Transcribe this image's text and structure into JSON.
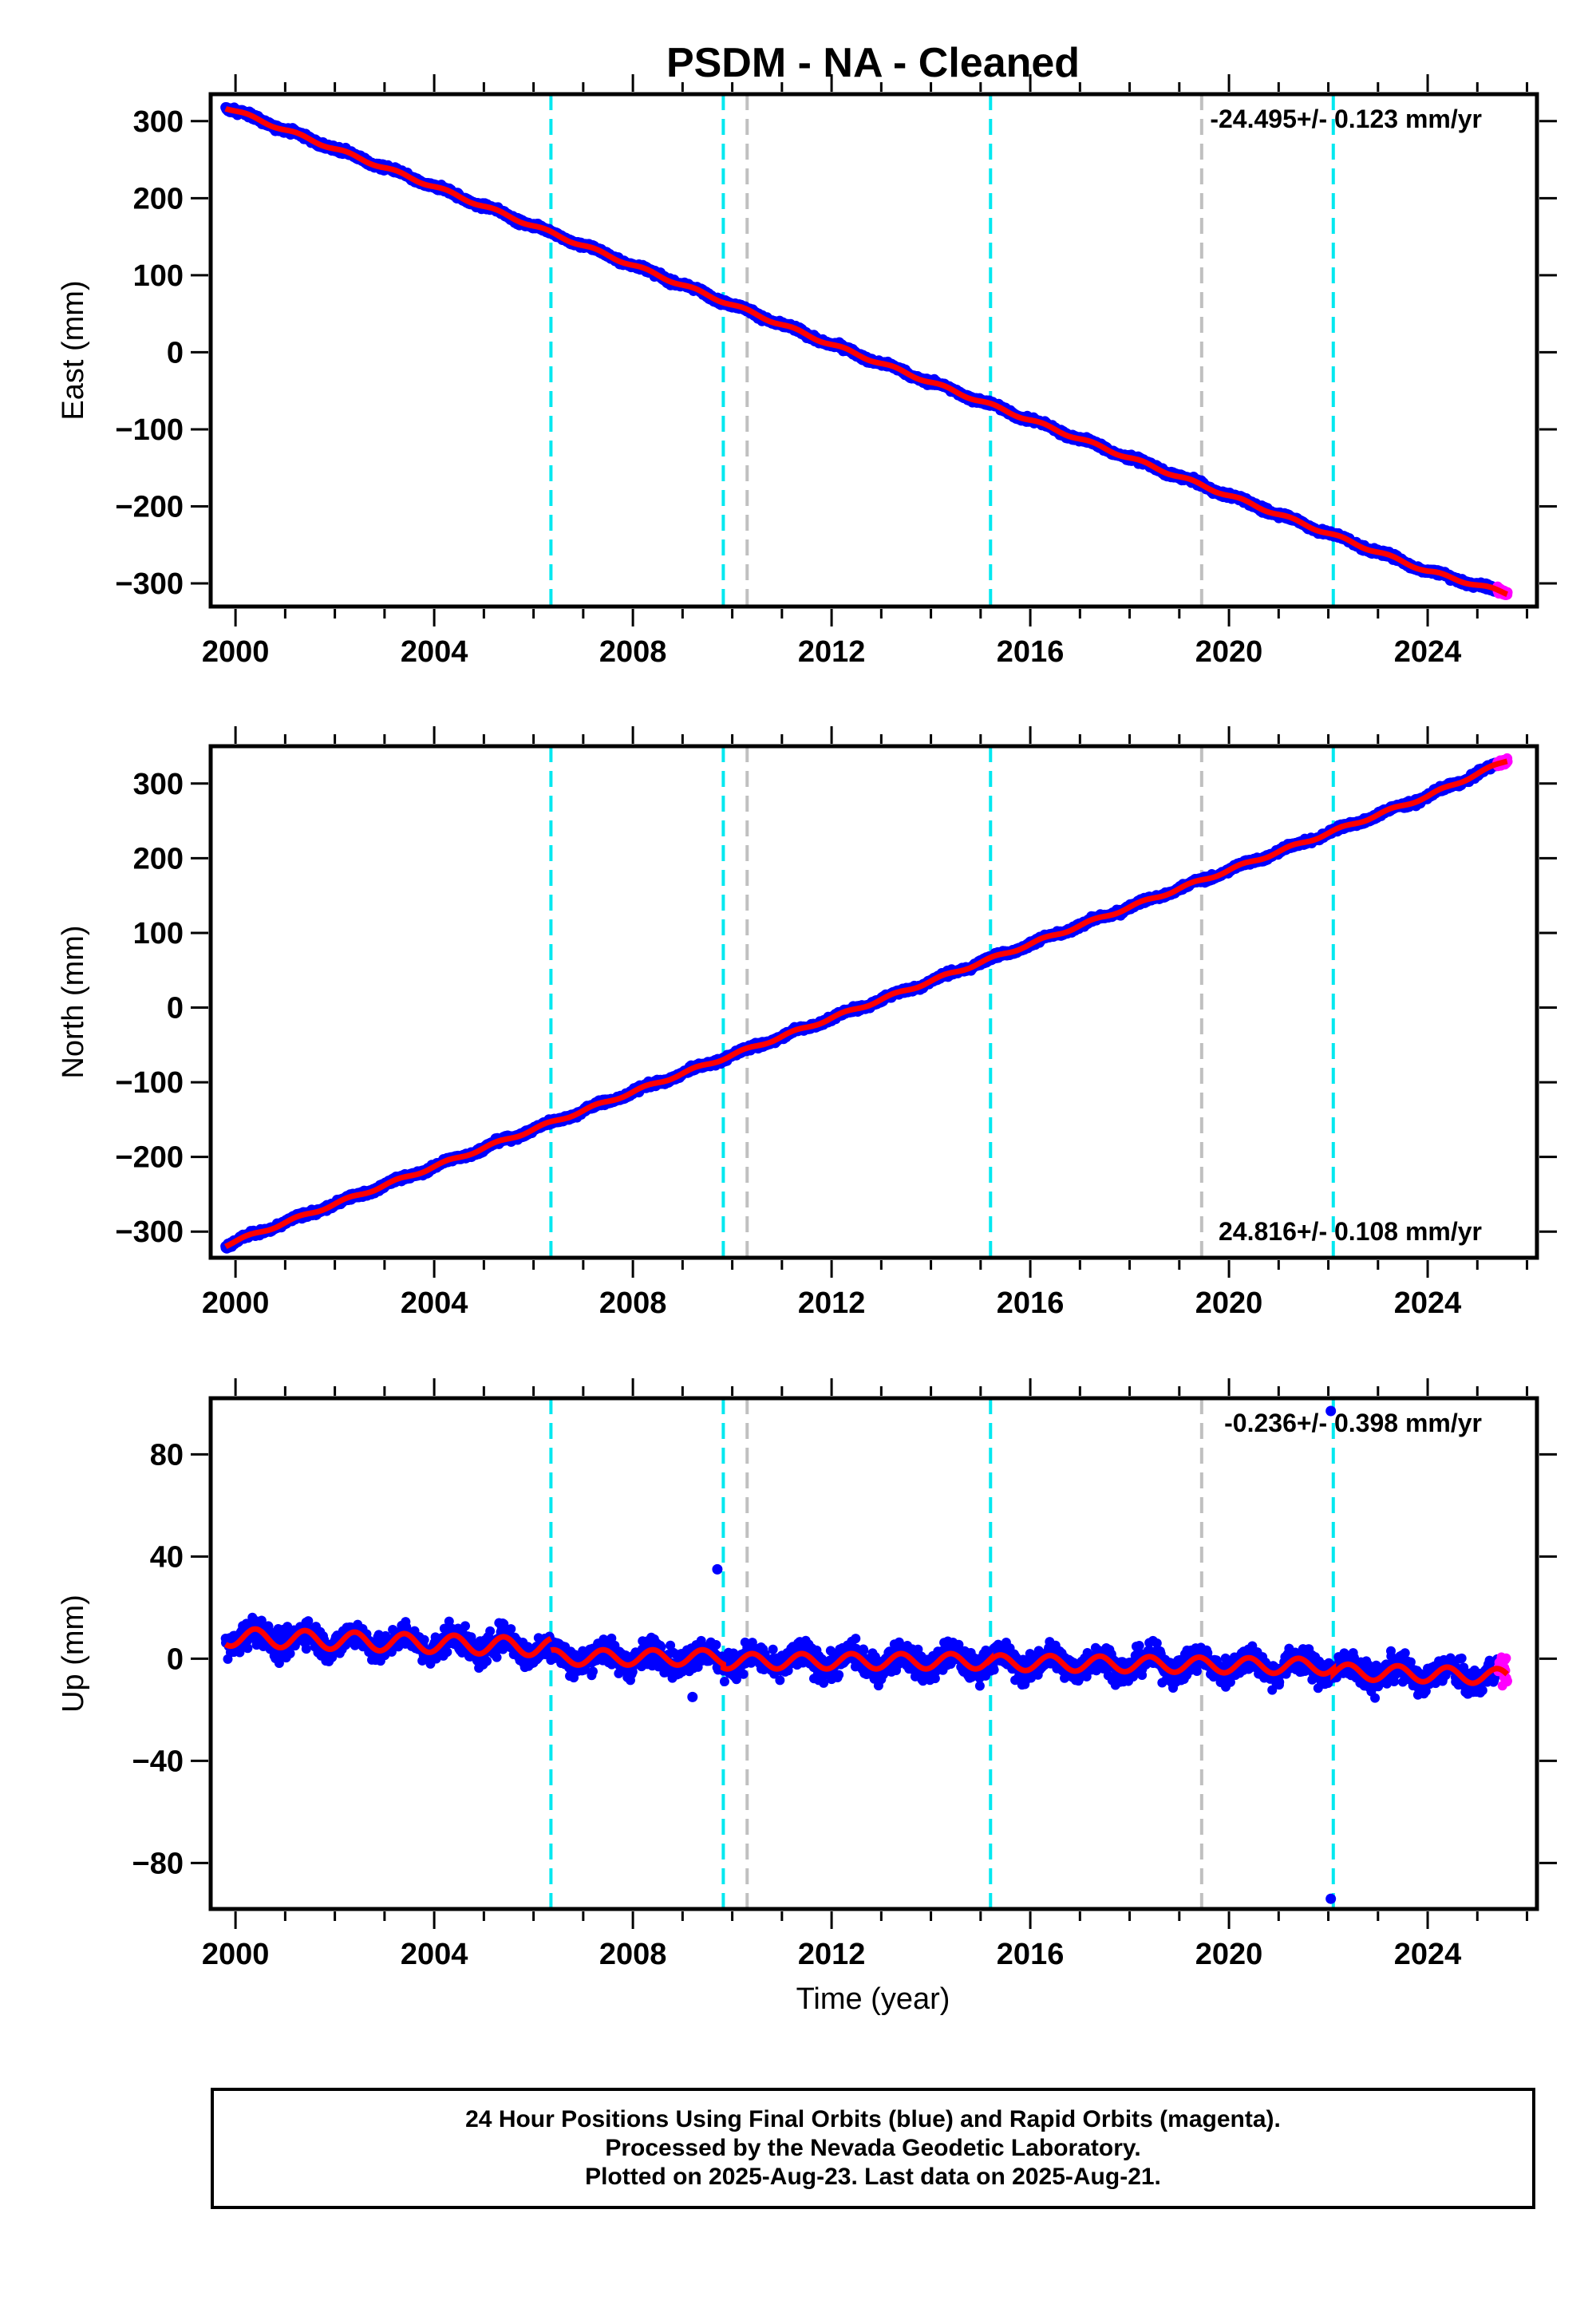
{
  "title": "PSDM  - NA - Cleaned",
  "xlabel": "Time (year)",
  "colors": {
    "final_orbits": "#0000ff",
    "rapid_orbits": "#ff00ff",
    "model": "#ff0000",
    "event_cyan": "#00e8f0",
    "event_gray": "#c0c0c0"
  },
  "chart_data": [
    {
      "type": "scatter",
      "panel": "East",
      "ylabel": "East (mm)",
      "xlim": [
        1999.5,
        2026.2
      ],
      "ylim": [
        -330,
        335
      ],
      "x_ticks": [
        2000,
        2004,
        2008,
        2012,
        2016,
        2020,
        2024
      ],
      "y_ticks": [
        -300,
        -200,
        -100,
        0,
        100,
        200,
        300
      ],
      "y_tick_labels": [
        "−300",
        "−200",
        "−100",
        "0",
        "100",
        "200",
        "300"
      ],
      "velocity_label": "-24.495+/- 0.123 mm/yr",
      "velocity_label_position": "top-right",
      "start": {
        "x": 1999.8,
        "y": 318
      },
      "end": {
        "x": 2025.6,
        "y": -313
      },
      "trend": [
        [
          1999.8,
          318
        ],
        [
          2004,
          215
        ],
        [
          2008,
          113
        ],
        [
          2012,
          10
        ],
        [
          2016,
          -88
        ],
        [
          2020,
          -186
        ],
        [
          2024,
          -284
        ],
        [
          2025.6,
          -313
        ]
      ],
      "scatter_noise_mm": 5,
      "seasonal_amplitude_mm": 2,
      "rapid_orbit_x_range": [
        2025.4,
        2025.65
      ],
      "event_lines": [
        {
          "x": 2006.35,
          "color": "cyan"
        },
        {
          "x": 2009.82,
          "color": "cyan"
        },
        {
          "x": 2010.3,
          "color": "gray"
        },
        {
          "x": 2015.2,
          "color": "cyan"
        },
        {
          "x": 2019.45,
          "color": "gray"
        },
        {
          "x": 2022.1,
          "color": "cyan"
        }
      ]
    },
    {
      "type": "scatter",
      "panel": "North",
      "ylabel": "North (mm)",
      "xlim": [
        1999.5,
        2026.2
      ],
      "ylim": [
        -335,
        350
      ],
      "x_ticks": [
        2000,
        2004,
        2008,
        2012,
        2016,
        2020,
        2024
      ],
      "y_ticks": [
        -300,
        -200,
        -100,
        0,
        100,
        200,
        300
      ],
      "y_tick_labels": [
        "−300",
        "−200",
        "−100",
        "0",
        "100",
        "200",
        "300"
      ],
      "velocity_label": "24.816+/- 0.108 mm/yr",
      "velocity_label_position": "bottom-right",
      "start": {
        "x": 1999.8,
        "y": -318
      },
      "end": {
        "x": 2025.6,
        "y": 331
      },
      "trend": [
        [
          1999.8,
          -318
        ],
        [
          2004,
          -213
        ],
        [
          2008,
          -113
        ],
        [
          2012,
          -14
        ],
        [
          2016,
          85
        ],
        [
          2020,
          184
        ],
        [
          2024,
          283
        ],
        [
          2025.6,
          331
        ]
      ],
      "scatter_noise_mm": 5,
      "seasonal_amplitude_mm": 2,
      "rapid_orbit_x_range": [
        2025.4,
        2025.65
      ],
      "event_lines": [
        {
          "x": 2006.35,
          "color": "cyan"
        },
        {
          "x": 2009.82,
          "color": "cyan"
        },
        {
          "x": 2010.3,
          "color": "gray"
        },
        {
          "x": 2015.2,
          "color": "cyan"
        },
        {
          "x": 2019.45,
          "color": "gray"
        },
        {
          "x": 2022.1,
          "color": "cyan"
        }
      ]
    },
    {
      "type": "scatter",
      "panel": "Up",
      "ylabel": "Up (mm)",
      "xlim": [
        1999.5,
        2026.2
      ],
      "ylim": [
        -98,
        102
      ],
      "x_ticks": [
        2000,
        2004,
        2008,
        2012,
        2016,
        2020,
        2024
      ],
      "y_ticks": [
        -80,
        -40,
        0,
        40,
        80
      ],
      "y_tick_labels": [
        "−80",
        "−40",
        "0",
        "40",
        "80"
      ],
      "velocity_label": "-0.236+/- 0.398 mm/yr",
      "velocity_label_position": "top-right",
      "model_segments": [
        {
          "x": [
            1999.8,
            2006.35
          ],
          "offset": [
            8.5,
            4.5
          ],
          "amplitude": 3.5
        },
        {
          "x": [
            2006.35,
            2009.82
          ],
          "offset": [
            0.5,
            0.5
          ],
          "amplitude": 3
        },
        {
          "x": [
            2009.82,
            2015.2
          ],
          "offset": [
            -1,
            -1
          ],
          "amplitude": 3
        },
        {
          "x": [
            2015.2,
            2022.1
          ],
          "offset": [
            -1.5,
            -3
          ],
          "amplitude": 3
        },
        {
          "x": [
            2022.1,
            2025.6
          ],
          "offset": [
            -5,
            -7
          ],
          "amplitude": 3
        }
      ],
      "scatter_noise_mm": 7,
      "rapid_orbit_x_range": [
        2025.4,
        2025.65
      ],
      "outliers": [
        {
          "x": 2009.7,
          "y": 35
        },
        {
          "x": 2009.2,
          "y": -15
        },
        {
          "x": 2022.05,
          "y": 97
        },
        {
          "x": 2022.05,
          "y": -94
        }
      ],
      "event_lines": [
        {
          "x": 2006.35,
          "color": "cyan"
        },
        {
          "x": 2009.82,
          "color": "cyan"
        },
        {
          "x": 2010.3,
          "color": "gray"
        },
        {
          "x": 2015.2,
          "color": "cyan"
        },
        {
          "x": 2019.45,
          "color": "gray"
        },
        {
          "x": 2022.1,
          "color": "cyan"
        }
      ]
    }
  ],
  "footer": {
    "line1": "24 Hour Positions Using Final Orbits (blue) and Rapid Orbits (magenta).",
    "line2": "Processed by the Nevada Geodetic Laboratory.",
    "line3": "Plotted on 2025-Aug-23. Last data on 2025-Aug-21."
  }
}
